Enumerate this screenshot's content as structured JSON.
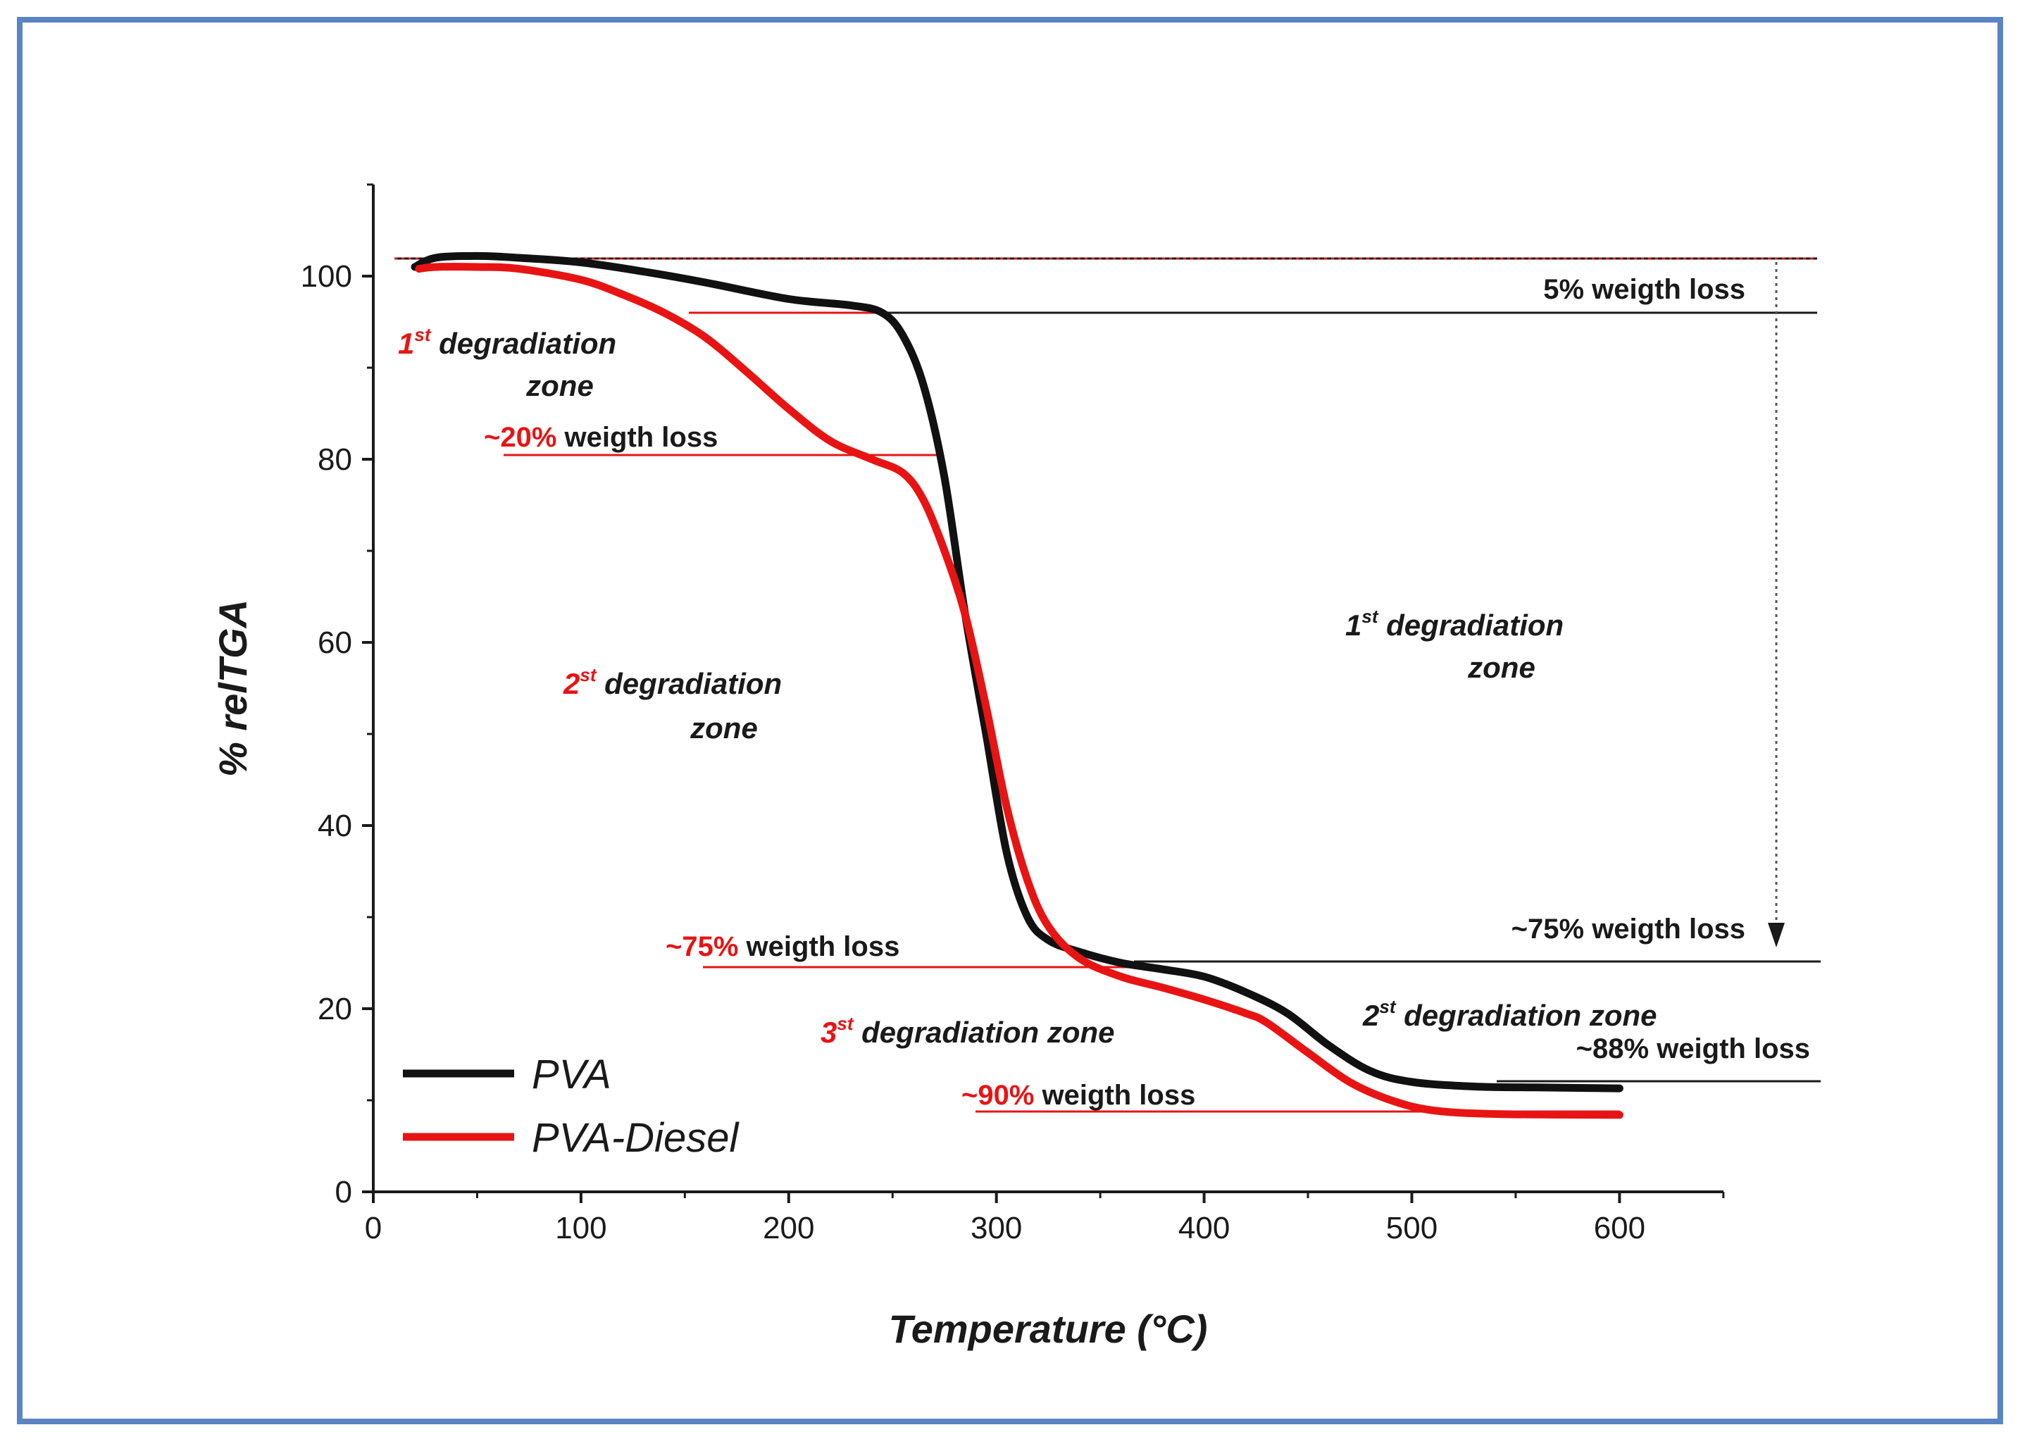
{
  "chart_data": {
    "type": "line",
    "xlabel": "Temperature (°C)",
    "ylabel": "% relTGA",
    "xlim": [
      0,
      650
    ],
    "ylim": [
      0,
      110
    ],
    "x_ticks": [
      "0",
      "100",
      "200",
      "300",
      "400",
      "500",
      "600"
    ],
    "y_ticks": [
      "0",
      "20",
      "40",
      "60",
      "80",
      "100"
    ],
    "colors": {
      "pva": "#111111",
      "diesel": "#e81414"
    },
    "series": [
      {
        "name": "PVA",
        "x": [
          20,
          30,
          50,
          70,
          100,
          130,
          160,
          200,
          230,
          245,
          255,
          265,
          275,
          285,
          295,
          305,
          315,
          325,
          340,
          360,
          380,
          400,
          420,
          440,
          460,
          480,
          500,
          530,
          560,
          600
        ],
        "y": [
          101,
          102,
          102.2,
          102,
          101.5,
          100.5,
          99.3,
          97.5,
          96.8,
          96,
          93.5,
          88,
          78,
          63,
          50,
          37,
          30,
          27.5,
          26.2,
          25,
          24.3,
          23.5,
          21.8,
          19.5,
          16,
          13.2,
          12,
          11.5,
          11.4,
          11.3
        ]
      },
      {
        "name": "PVA-Diesel",
        "x": [
          22,
          30,
          50,
          70,
          100,
          120,
          140,
          160,
          180,
          200,
          220,
          240,
          255,
          265,
          275,
          285,
          295,
          305,
          315,
          325,
          340,
          360,
          380,
          400,
          420,
          430,
          450,
          470,
          490,
          510,
          540,
          600
        ],
        "y": [
          100.8,
          101,
          101,
          100.8,
          99.6,
          98,
          96,
          93.3,
          89.5,
          85.5,
          82,
          80,
          78.5,
          75.5,
          70,
          63,
          53,
          42,
          34,
          29,
          25.5,
          23.5,
          22.3,
          21,
          19.5,
          18.5,
          15.2,
          12,
          10,
          8.9,
          8.5,
          8.4
        ]
      }
    ],
    "annotations": {
      "pva_5": "5% weigth loss",
      "pva_zone1_a": "1",
      "pva_zone1_sup": "st",
      "pva_zone1_b": " degradiation",
      "pva_zone1_c": "zone",
      "pva_75": "~75% weigth loss",
      "pva_zone2_a": "2",
      "pva_zone2_sup": "st",
      "pva_zone2_b": " degradiation zone",
      "pva_88": "~88% weigth loss",
      "d_zone1_a": "1",
      "d_zone1_sup": "st",
      "d_zone1_b": " degradiation",
      "d_zone1_c": "zone",
      "d_20_pct": "~20%",
      "d_20_rest": " weigth loss",
      "d_zone2_a": "2",
      "d_zone2_sup": "st",
      "d_zone2_b": " degradiation",
      "d_zone2_c": "zone",
      "d_75_pct": "~75%",
      "d_75_rest": " weigth loss",
      "d_zone3_a": "3",
      "d_zone3_sup": "st",
      "d_zone3_b": " degradiation zone",
      "d_90_pct": "~90%",
      "d_90_rest": " weigth loss"
    },
    "legend": {
      "placement": "bottom-left",
      "items": [
        "PVA",
        "PVA-Diesel"
      ]
    }
  }
}
